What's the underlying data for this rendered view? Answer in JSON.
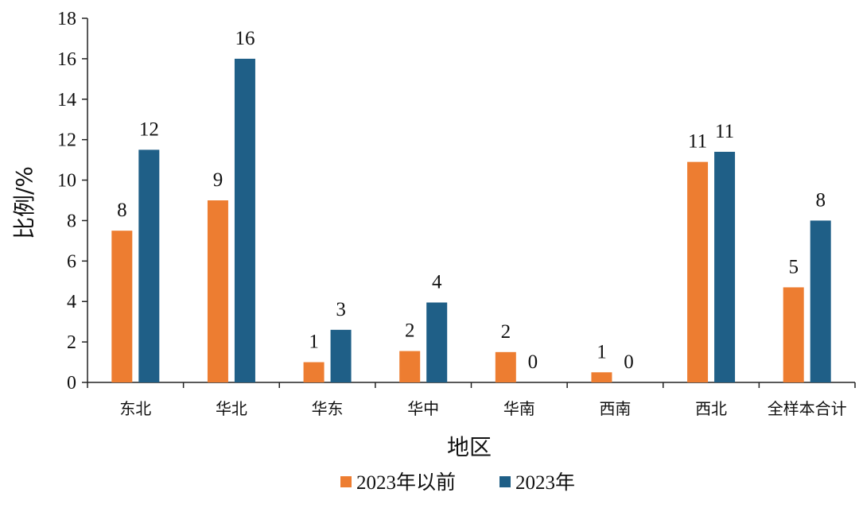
{
  "chart_data": {
    "type": "bar",
    "xlabel": "地区",
    "ylabel": "比例/%",
    "ylim": [
      0,
      18
    ],
    "yticks": [
      0,
      2,
      4,
      6,
      8,
      10,
      12,
      14,
      16,
      18
    ],
    "grid": false,
    "legend_position": "bottom",
    "categories": [
      "东北",
      "华北",
      "华东",
      "华中",
      "华南",
      "西南",
      "西北",
      "全样本合计"
    ],
    "series": [
      {
        "name": "2023年以前",
        "color": "#ED7D31",
        "values": [
          7.5,
          9.0,
          1.0,
          1.55,
          1.5,
          0.5,
          10.9,
          4.7
        ],
        "labels": [
          "8",
          "9",
          "1",
          "2",
          "2",
          "1",
          "11",
          "5"
        ]
      },
      {
        "name": "2023年",
        "color": "#1F5F87",
        "values": [
          11.5,
          16.0,
          2.6,
          3.95,
          0,
          0,
          11.4,
          8.0
        ],
        "labels": [
          "12",
          "16",
          "3",
          "4",
          "0",
          "0",
          "11",
          "8"
        ]
      }
    ]
  }
}
